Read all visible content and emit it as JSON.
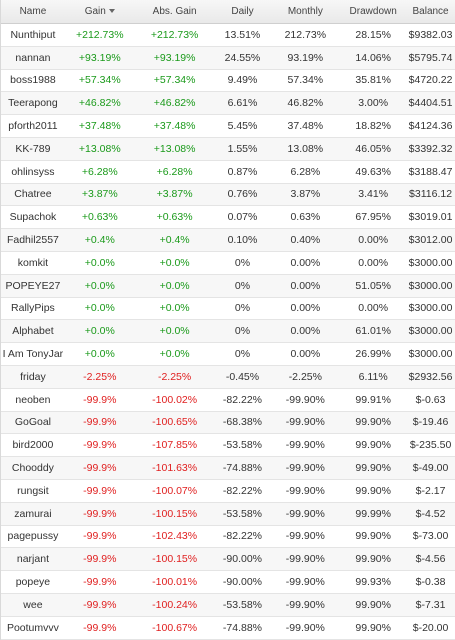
{
  "columns": {
    "name": "Name",
    "gain": "Gain",
    "abs_gain": "Abs. Gain",
    "daily": "Daily",
    "monthly": "Monthly",
    "drawdown": "Drawdown",
    "balance": "Balance"
  },
  "colors": {
    "positive": "#1a9a1a",
    "negative": "#e02020"
  },
  "rows": [
    {
      "name": "Nunthiput",
      "gain": "+212.73%",
      "abs_gain": "+212.73%",
      "daily": "13.51%",
      "monthly": "212.73%",
      "drawdown": "28.15%",
      "balance": "$9382.03"
    },
    {
      "name": "nannan",
      "gain": "+93.19%",
      "abs_gain": "+93.19%",
      "daily": "24.55%",
      "monthly": "93.19%",
      "drawdown": "14.06%",
      "balance": "$5795.74"
    },
    {
      "name": "boss1988",
      "gain": "+57.34%",
      "abs_gain": "+57.34%",
      "daily": "9.49%",
      "monthly": "57.34%",
      "drawdown": "35.81%",
      "balance": "$4720.22"
    },
    {
      "name": "Teerapong",
      "gain": "+46.82%",
      "abs_gain": "+46.82%",
      "daily": "6.61%",
      "monthly": "46.82%",
      "drawdown": "3.00%",
      "balance": "$4404.51"
    },
    {
      "name": "pforth2011",
      "gain": "+37.48%",
      "abs_gain": "+37.48%",
      "daily": "5.45%",
      "monthly": "37.48%",
      "drawdown": "18.82%",
      "balance": "$4124.36"
    },
    {
      "name": "KK-789",
      "gain": "+13.08%",
      "abs_gain": "+13.08%",
      "daily": "1.55%",
      "monthly": "13.08%",
      "drawdown": "46.05%",
      "balance": "$3392.32"
    },
    {
      "name": "ohlinsyss",
      "gain": "+6.28%",
      "abs_gain": "+6.28%",
      "daily": "0.87%",
      "monthly": "6.28%",
      "drawdown": "49.63%",
      "balance": "$3188.47"
    },
    {
      "name": "Chatree",
      "gain": "+3.87%",
      "abs_gain": "+3.87%",
      "daily": "0.76%",
      "monthly": "3.87%",
      "drawdown": "3.41%",
      "balance": "$3116.12"
    },
    {
      "name": "Supachok",
      "gain": "+0.63%",
      "abs_gain": "+0.63%",
      "daily": "0.07%",
      "monthly": "0.63%",
      "drawdown": "67.95%",
      "balance": "$3019.01"
    },
    {
      "name": "Fadhil2557",
      "gain": "+0.4%",
      "abs_gain": "+0.4%",
      "daily": "0.10%",
      "monthly": "0.40%",
      "drawdown": "0.00%",
      "balance": "$3012.00"
    },
    {
      "name": "komkit",
      "gain": "+0.0%",
      "abs_gain": "+0.0%",
      "daily": "0%",
      "monthly": "0.00%",
      "drawdown": "0.00%",
      "balance": "$3000.00"
    },
    {
      "name": "POPEYE27",
      "gain": "+0.0%",
      "abs_gain": "+0.0%",
      "daily": "0%",
      "monthly": "0.00%",
      "drawdown": "51.05%",
      "balance": "$3000.00"
    },
    {
      "name": "RallyPips",
      "gain": "+0.0%",
      "abs_gain": "+0.0%",
      "daily": "0%",
      "monthly": "0.00%",
      "drawdown": "0.00%",
      "balance": "$3000.00"
    },
    {
      "name": "Alphabet",
      "gain": "+0.0%",
      "abs_gain": "+0.0%",
      "daily": "0%",
      "monthly": "0.00%",
      "drawdown": "61.01%",
      "balance": "$3000.00"
    },
    {
      "name": "I Am TonyJar",
      "gain": "+0.0%",
      "abs_gain": "+0.0%",
      "daily": "0%",
      "monthly": "0.00%",
      "drawdown": "26.99%",
      "balance": "$3000.00"
    },
    {
      "name": "friday",
      "gain": "-2.25%",
      "abs_gain": "-2.25%",
      "daily": "-0.45%",
      "monthly": "-2.25%",
      "drawdown": "6.11%",
      "balance": "$2932.56"
    },
    {
      "name": "neoben",
      "gain": "-99.9%",
      "abs_gain": "-100.02%",
      "daily": "-82.22%",
      "monthly": "-99.90%",
      "drawdown": "99.91%",
      "balance": "$-0.63"
    },
    {
      "name": "GoGoal",
      "gain": "-99.9%",
      "abs_gain": "-100.65%",
      "daily": "-68.38%",
      "monthly": "-99.90%",
      "drawdown": "99.90%",
      "balance": "$-19.46"
    },
    {
      "name": "bird2000",
      "gain": "-99.9%",
      "abs_gain": "-107.85%",
      "daily": "-53.58%",
      "monthly": "-99.90%",
      "drawdown": "99.90%",
      "balance": "$-235.50"
    },
    {
      "name": "Chooddy",
      "gain": "-99.9%",
      "abs_gain": "-101.63%",
      "daily": "-74.88%",
      "monthly": "-99.90%",
      "drawdown": "99.90%",
      "balance": "$-49.00"
    },
    {
      "name": "rungsit",
      "gain": "-99.9%",
      "abs_gain": "-100.07%",
      "daily": "-82.22%",
      "monthly": "-99.90%",
      "drawdown": "99.90%",
      "balance": "$-2.17"
    },
    {
      "name": "zamurai",
      "gain": "-99.9%",
      "abs_gain": "-100.15%",
      "daily": "-53.58%",
      "monthly": "-99.90%",
      "drawdown": "99.99%",
      "balance": "$-4.52"
    },
    {
      "name": "pagepussy",
      "gain": "-99.9%",
      "abs_gain": "-102.43%",
      "daily": "-82.22%",
      "monthly": "-99.90%",
      "drawdown": "99.90%",
      "balance": "$-73.00"
    },
    {
      "name": "narjant",
      "gain": "-99.9%",
      "abs_gain": "-100.15%",
      "daily": "-90.00%",
      "monthly": "-99.90%",
      "drawdown": "99.90%",
      "balance": "$-4.56"
    },
    {
      "name": "popeye",
      "gain": "-99.9%",
      "abs_gain": "-100.01%",
      "daily": "-90.00%",
      "monthly": "-99.90%",
      "drawdown": "99.93%",
      "balance": "$-0.38"
    },
    {
      "name": "wee",
      "gain": "-99.9%",
      "abs_gain": "-100.24%",
      "daily": "-53.58%",
      "monthly": "-99.90%",
      "drawdown": "99.90%",
      "balance": "$-7.31"
    },
    {
      "name": "Pootumvvv",
      "gain": "-99.9%",
      "abs_gain": "-100.67%",
      "daily": "-74.88%",
      "monthly": "-99.90%",
      "drawdown": "99.90%",
      "balance": "$-20.00"
    }
  ]
}
